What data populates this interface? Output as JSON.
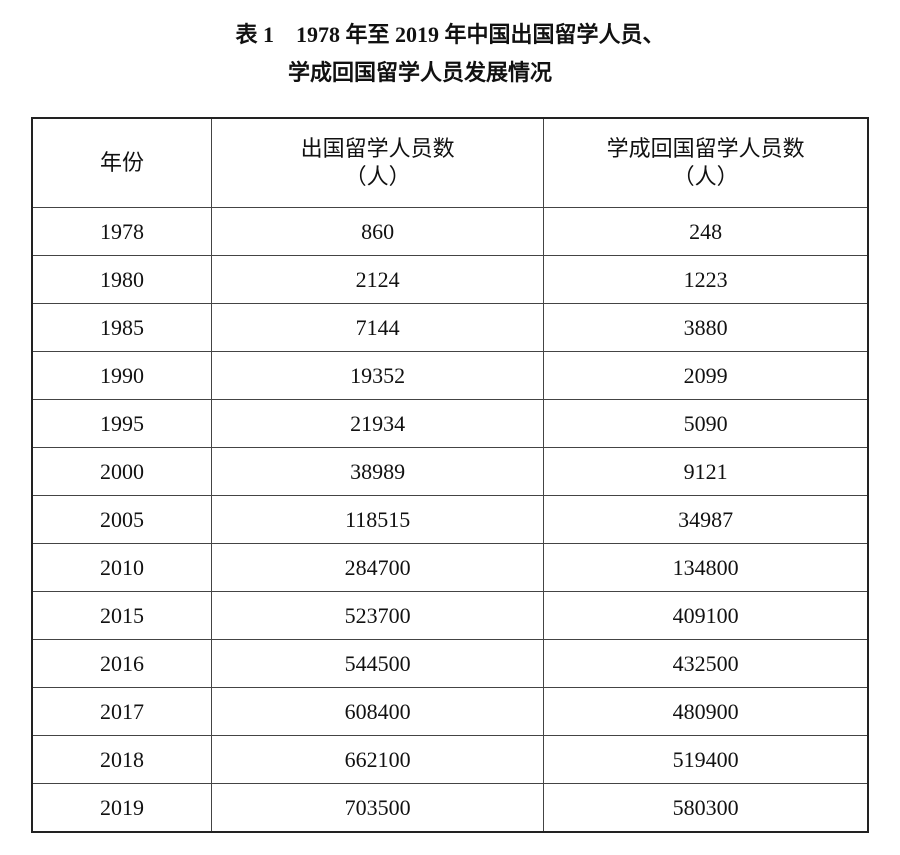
{
  "title": {
    "line1": "表 1　1978 年至 2019 年中国出国留学人员、",
    "line2": "学成回国留学人员发展情况"
  },
  "table": {
    "headers": [
      {
        "main": "年份",
        "unit": ""
      },
      {
        "main": "出国留学人员数",
        "unit": "（人）"
      },
      {
        "main": "学成回国留学人员数",
        "unit": "（人）"
      }
    ],
    "rows": [
      [
        "1978",
        "860",
        "248"
      ],
      [
        "1980",
        "2124",
        "1223"
      ],
      [
        "1985",
        "7144",
        "3880"
      ],
      [
        "1990",
        "19352",
        "2099"
      ],
      [
        "1995",
        "21934",
        "5090"
      ],
      [
        "2000",
        "38989",
        "9121"
      ],
      [
        "2005",
        "118515",
        "34987"
      ],
      [
        "2010",
        "284700",
        "134800"
      ],
      [
        "2015",
        "523700",
        "409100"
      ],
      [
        "2016",
        "544500",
        "432500"
      ],
      [
        "2017",
        "608400",
        "480900"
      ],
      [
        "2018",
        "662100",
        "519400"
      ],
      [
        "2019",
        "703500",
        "580300"
      ]
    ]
  }
}
